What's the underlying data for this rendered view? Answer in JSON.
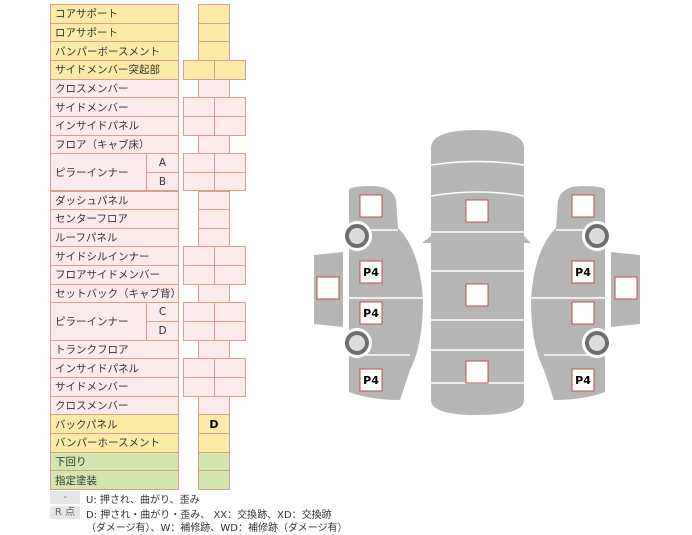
{
  "rows": [
    {
      "label": "コアサポート",
      "color": "y",
      "cells": 1
    },
    {
      "label": "ロアサポート",
      "color": "y",
      "cells": 1
    },
    {
      "label": "バンパーボースメント",
      "color": "y",
      "cells": 1
    },
    {
      "label": "サイドメンバー突起部",
      "color": "y",
      "cells": 2
    },
    {
      "label": "クロスメンバー",
      "color": "p",
      "cells": 1
    },
    {
      "label": "サイドメンバー",
      "color": "p",
      "cells": 2
    },
    {
      "label": "インサイドパネル",
      "color": "p",
      "cells": 2
    },
    {
      "label": "フロア（キャブ床）",
      "color": "p",
      "cells": 1
    },
    {
      "label": "ピラーインナー",
      "sub": "A",
      "color": "p",
      "cells": 2,
      "group": "start"
    },
    {
      "label": "",
      "sub": "B",
      "color": "p",
      "cells": 2,
      "group": "cont"
    },
    {
      "label": "ダッシュパネル",
      "color": "p",
      "cells": 1
    },
    {
      "label": "センターフロア",
      "color": "p",
      "cells": 1
    },
    {
      "label": "ルーフパネル",
      "color": "p",
      "cells": 1
    },
    {
      "label": "サイドシルインナー",
      "color": "p",
      "cells": 2
    },
    {
      "label": "フロアサイドメンバー",
      "color": "p",
      "cells": 2
    },
    {
      "label": "セットバック（キャブ背）",
      "color": "p",
      "cells": 1
    },
    {
      "label": "ピラーインナー",
      "sub": "C",
      "color": "p",
      "cells": 2,
      "group": "start"
    },
    {
      "label": "",
      "sub": "D",
      "color": "p",
      "cells": 2,
      "group": "cont"
    },
    {
      "label": "トランクフロア",
      "color": "p",
      "cells": 1
    },
    {
      "label": "インサイドパネル",
      "color": "p",
      "cells": 2
    },
    {
      "label": "サイドメンバー",
      "color": "p",
      "cells": 2
    },
    {
      "label": "クロスメンバー",
      "color": "p",
      "cells": 1
    },
    {
      "label": "バックパネル",
      "color": "y",
      "cells": 1,
      "value": "D"
    },
    {
      "label": "バンパーホースメント",
      "color": "y",
      "cells": 1
    },
    {
      "label": "下回り",
      "color": "g",
      "cells": 1
    },
    {
      "label": "指定塗装",
      "color": "g",
      "cells": 1
    }
  ],
  "legend": [
    {
      "key": "-",
      "text": "U: 押され、曲がり、歪み"
    },
    {
      "key": "R 点",
      "text": "D: 押され・曲がり・歪み、 XX：交換跡、XD：交換跡",
      "text2": "（ダメージ有）、W：補修跡、WD：補修跡（ダメージ有）"
    }
  ],
  "diagram": {
    "boxes": [
      {
        "id": "left-front",
        "label": ""
      },
      {
        "id": "left-front-door",
        "label": "P4"
      },
      {
        "id": "left-rear-door",
        "label": "P4"
      },
      {
        "id": "left-rear",
        "label": "P4"
      },
      {
        "id": "left-mirror-side",
        "label": ""
      },
      {
        "id": "hood",
        "label": ""
      },
      {
        "id": "roof",
        "label": ""
      },
      {
        "id": "trunk",
        "label": ""
      },
      {
        "id": "right-front",
        "label": ""
      },
      {
        "id": "right-front-door",
        "label": "P4"
      },
      {
        "id": "right-rear-door",
        "label": ""
      },
      {
        "id": "right-rear",
        "label": "P4"
      },
      {
        "id": "right-mirror-side",
        "label": ""
      }
    ],
    "colors": {
      "body": "#b5b5b5",
      "box_border": "#c0504d",
      "wheel": "#6e6e6e"
    }
  }
}
